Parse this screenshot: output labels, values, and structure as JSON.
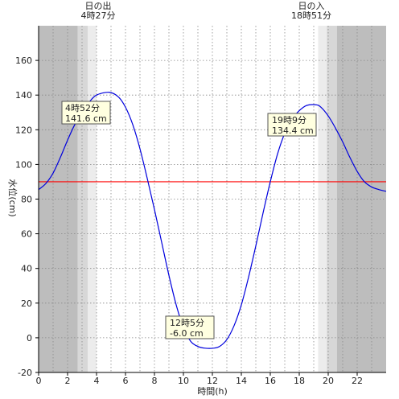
{
  "chart_data": {
    "type": "line",
    "xlabel": "時間(h)",
    "ylabel": "水位(cm)",
    "xlim": [
      0,
      24
    ],
    "ylim": [
      -20,
      180
    ],
    "xticks": [
      0,
      2,
      4,
      6,
      8,
      10,
      12,
      14,
      16,
      18,
      20,
      22
    ],
    "yticks": [
      -20,
      0,
      20,
      40,
      60,
      80,
      100,
      120,
      140,
      160
    ],
    "grid": true,
    "colors": {
      "tide_line": "#0000dd",
      "reference_line": "#ff0000",
      "night": "#bdbdbd",
      "twilight": "#d7d7d7",
      "dawn": "#ececec"
    },
    "reference_line": 90,
    "sunrise": {
      "label": "日の出",
      "time": "4時27分",
      "hour": 4.45
    },
    "sunset": {
      "label": "日の入",
      "time": "18時51分",
      "hour": 18.85
    },
    "shading": [
      {
        "from": 0,
        "to": 2.7,
        "kind": "night"
      },
      {
        "from": 2.7,
        "to": 3.4,
        "kind": "twilight"
      },
      {
        "from": 3.4,
        "to": 4.0,
        "kind": "dawn"
      },
      {
        "from": 19.3,
        "to": 19.9,
        "kind": "dawn"
      },
      {
        "from": 19.9,
        "to": 20.6,
        "kind": "twilight"
      },
      {
        "from": 20.6,
        "to": 24,
        "kind": "night"
      }
    ],
    "series": [
      {
        "x": [
          0,
          0.5,
          1,
          1.5,
          2,
          2.5,
          3,
          3.5,
          4,
          4.87,
          5.5,
          6,
          6.5,
          7,
          7.5,
          8,
          8.5,
          9,
          9.5,
          10,
          10.5,
          11,
          11.5,
          12.08,
          12.5,
          13,
          13.5,
          14,
          14.5,
          15,
          15.5,
          16,
          16.5,
          17,
          17.5,
          18,
          18.5,
          19.15,
          19.5,
          20,
          20.5,
          21,
          21.5,
          22,
          22.5,
          23,
          23.5,
          24
        ],
        "y": [
          85.5,
          89,
          95,
          104,
          114,
          123,
          130,
          136,
          140,
          141.6,
          139,
          133,
          123,
          109,
          92,
          74,
          55,
          36,
          19,
          6,
          -2,
          -5,
          -6,
          -6.0,
          -5,
          -1,
          7,
          19,
          35,
          53,
          72,
          90,
          106,
          118,
          126,
          131,
          134,
          134.4,
          133,
          128,
          121,
          113,
          104,
          96,
          90,
          87,
          85.5,
          84.5
        ]
      }
    ],
    "annotations": [
      {
        "time": "4時52分",
        "value": "141.6 cm",
        "x": 4.87,
        "y": 141.6
      },
      {
        "time": "12時5分",
        "value": "-6.0 cm",
        "x": 12.08,
        "y": -6.0
      },
      {
        "time": "19時9分",
        "value": "134.4 cm",
        "x": 19.15,
        "y": 134.4
      }
    ]
  }
}
